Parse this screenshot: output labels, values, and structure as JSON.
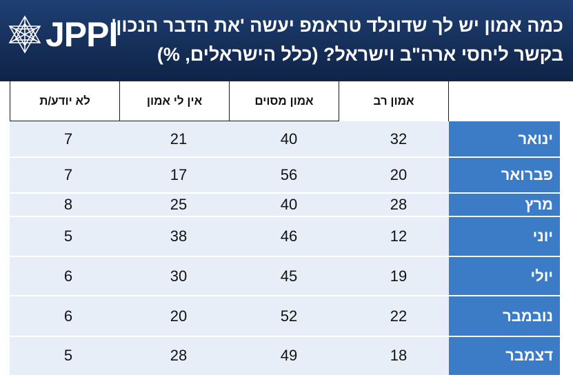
{
  "header": {
    "logo_text": "JPPI",
    "logo_icon": "star-of-david-icon",
    "title_line1": "כמה אמון יש לך שדונלד טראמפ יעשה 'את הדבר הנכון'",
    "title_line2": "בקשר ליחסי ארה\"ב וישראל? (כלל הישראלים, %)"
  },
  "colors": {
    "header_bg": "#152e57",
    "label_bg": "#3c7cc6",
    "cell_bg": "#e8eef8"
  },
  "chart_data": {
    "type": "table",
    "title": "כמה אמון יש לך שדונלד טראמפ יעשה 'את הדבר הנכון' בקשר ליחסי ארה\"ב וישראל? (כלל הישראלים, %)",
    "columns": [
      "אמון רב",
      "אמון מסוים",
      "אין לי אמון",
      "לא יודע/ת"
    ],
    "rows": [
      {
        "label": "ינואר",
        "values": [
          32,
          40,
          21,
          7
        ]
      },
      {
        "label": "פברואר",
        "values": [
          20,
          56,
          17,
          7
        ]
      },
      {
        "label": "מרץ",
        "values": [
          28,
          40,
          25,
          8
        ]
      },
      {
        "label": "יוני",
        "values": [
          12,
          46,
          38,
          5
        ]
      },
      {
        "label": "יולי",
        "values": [
          19,
          45,
          30,
          6
        ]
      },
      {
        "label": "נובמבר",
        "values": [
          22,
          52,
          20,
          6
        ]
      },
      {
        "label": "דצמבר",
        "values": [
          18,
          49,
          28,
          5
        ]
      }
    ]
  }
}
